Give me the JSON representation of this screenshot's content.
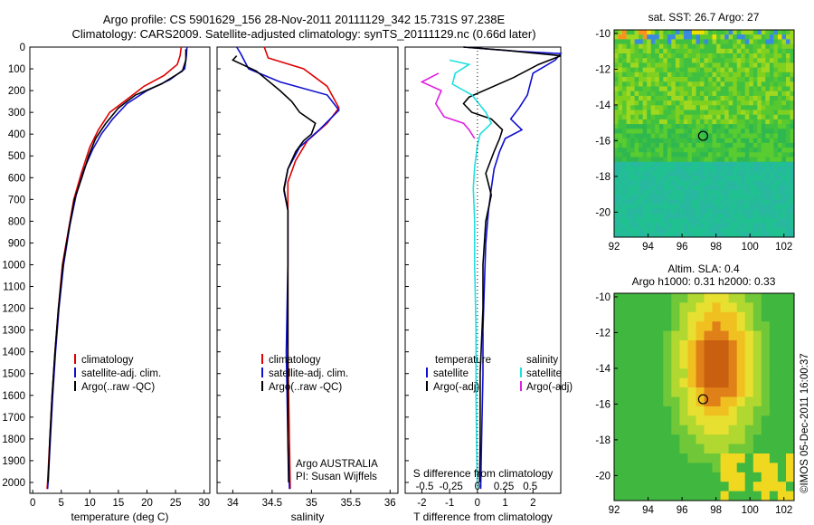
{
  "header": {
    "line1": "Argo profile: CS 5901629_156 28-Nov-2011 20111129_342 15.731S 97.238E",
    "line2": "Climatology: CARS2009. Satellite-adjusted climatology: synTS_20111129.nc (0.66d later)"
  },
  "colors": {
    "climatology": "#e00000",
    "satellite": "#1010d0",
    "argo": "#000000",
    "sal_satellite": "#20e0e0",
    "sal_argo": "#e020e0"
  },
  "chart_data": [
    {
      "type": "line",
      "name": "temperature-profile",
      "xlabel": "temperature (deg C)",
      "ylabel": "",
      "xlim": [
        -0.5,
        31
      ],
      "ylim": [
        2050,
        0
      ],
      "xticks": [
        0,
        5,
        10,
        15,
        20,
        25,
        30
      ],
      "yticks": [
        0,
        100,
        200,
        300,
        400,
        500,
        600,
        700,
        800,
        900,
        1000,
        1100,
        1200,
        1300,
        1400,
        1500,
        1600,
        1700,
        1800,
        1900,
        2000
      ],
      "legend": [
        "climatology",
        "satellite-adj. clim.",
        "Argo(..raw -QC)"
      ],
      "series": [
        {
          "name": "climatology",
          "color": "#e00000",
          "points": [
            [
              26,
              0
            ],
            [
              25.8,
              40
            ],
            [
              25.3,
              80
            ],
            [
              23,
              130
            ],
            [
              19.5,
              180
            ],
            [
              16.5,
              240
            ],
            [
              13.5,
              300
            ],
            [
              11.5,
              380
            ],
            [
              10,
              460
            ],
            [
              8.5,
              580
            ],
            [
              7.2,
              700
            ],
            [
              6.2,
              850
            ],
            [
              5.2,
              1000
            ],
            [
              4.5,
              1200
            ],
            [
              3.9,
              1400
            ],
            [
              3.4,
              1600
            ],
            [
              3,
              1800
            ],
            [
              2.6,
              2000
            ],
            [
              2.5,
              2030
            ]
          ]
        },
        {
          "name": "satellite-adj. clim.",
          "color": "#1010d0",
          "points": [
            [
              27,
              0
            ],
            [
              26.9,
              40
            ],
            [
              26.6,
              100
            ],
            [
              24,
              150
            ],
            [
              20,
              200
            ],
            [
              16.5,
              260
            ],
            [
              14,
              330
            ],
            [
              12,
              400
            ],
            [
              10.5,
              470
            ],
            [
              9,
              560
            ],
            [
              7.6,
              680
            ],
            [
              6.5,
              820
            ],
            [
              5.4,
              1000
            ],
            [
              4.6,
              1200
            ],
            [
              4,
              1400
            ],
            [
              3.5,
              1600
            ],
            [
              3.1,
              1800
            ],
            [
              2.7,
              2000
            ],
            [
              2.6,
              2030
            ]
          ]
        },
        {
          "name": "Argo(..raw -QC)",
          "color": "#000000",
          "points": [
            [
              26.8,
              10
            ],
            [
              26.8,
              60
            ],
            [
              26.2,
              110
            ],
            [
              22.5,
              170
            ],
            [
              18,
              220
            ],
            [
              15,
              280
            ],
            [
              12.8,
              350
            ],
            [
              11,
              420
            ],
            [
              9.8,
              500
            ],
            [
              8.6,
              600
            ],
            [
              7.3,
              700
            ],
            [
              6.3,
              840
            ],
            [
              5.3,
              1000
            ],
            [
              4.5,
              1200
            ],
            [
              3.9,
              1400
            ],
            [
              3.4,
              1600
            ],
            [
              3,
              1800
            ],
            [
              2.7,
              2000
            ]
          ]
        }
      ]
    },
    {
      "type": "line",
      "name": "salinity-profile",
      "xlabel": "salinity",
      "ylabel": "",
      "xlim": [
        33.8,
        36.1
      ],
      "ylim": [
        2050,
        0
      ],
      "xticks": [
        34,
        34.5,
        35,
        35.5,
        36
      ],
      "xtick_labels": [
        "34",
        "34.5",
        "35",
        "35.5",
        "36"
      ],
      "legend": [
        "climatology",
        "satellite-adj. clim.",
        "Argo(..raw -QC)"
      ],
      "annotation": [
        "Argo AUSTRALIA",
        "PI: Susan Wijffels"
      ],
      "series": [
        {
          "name": "climatology",
          "color": "#e00000",
          "points": [
            [
              34.4,
              0
            ],
            [
              34.45,
              50
            ],
            [
              34.9,
              100
            ],
            [
              35.2,
              180
            ],
            [
              35.35,
              280
            ],
            [
              35.2,
              350
            ],
            [
              34.95,
              430
            ],
            [
              34.8,
              520
            ],
            [
              34.7,
              620
            ],
            [
              34.7,
              750
            ],
            [
              34.7,
              1000
            ],
            [
              34.7,
              1400
            ],
            [
              34.72,
              1800
            ],
            [
              34.73,
              2030
            ]
          ]
        },
        {
          "name": "satellite-adj. clim.",
          "color": "#1010d0",
          "points": [
            [
              34.05,
              0
            ],
            [
              34.1,
              30
            ],
            [
              34.2,
              100
            ],
            [
              34.6,
              160
            ],
            [
              35.2,
              220
            ],
            [
              35.35,
              290
            ],
            [
              35.1,
              380
            ],
            [
              34.85,
              460
            ],
            [
              34.7,
              560
            ],
            [
              34.65,
              660
            ],
            [
              34.7,
              750
            ],
            [
              34.7,
              1000
            ],
            [
              34.68,
              1400
            ],
            [
              34.7,
              1800
            ],
            [
              34.72,
              2030
            ]
          ]
        },
        {
          "name": "Argo(..raw -QC)",
          "color": "#000000",
          "points": [
            [
              34.05,
              40
            ],
            [
              34.0,
              60
            ],
            [
              34.3,
              110
            ],
            [
              34.6,
              200
            ],
            [
              34.75,
              250
            ],
            [
              34.85,
              300
            ],
            [
              35.05,
              350
            ],
            [
              35.0,
              400
            ],
            [
              34.9,
              430
            ],
            [
              34.8,
              480
            ],
            [
              34.7,
              560
            ],
            [
              34.65,
              650
            ],
            [
              34.7,
              750
            ],
            [
              34.7,
              1000
            ],
            [
              34.7,
              1400
            ],
            [
              34.7,
              1800
            ],
            [
              34.71,
              2000
            ]
          ]
        }
      ]
    },
    {
      "type": "line",
      "name": "difference-profile",
      "xlabel": "T difference from climatology",
      "xlabel_top": "S difference from climatology",
      "xlim": [
        -2.6,
        3
      ],
      "ylim": [
        2050,
        0
      ],
      "xticks": [
        -2,
        -1,
        0,
        1,
        2
      ],
      "xtick_labels": [
        "-2",
        "-1",
        "0",
        "1",
        "2"
      ],
      "sticks": [
        -0.5,
        -0.25,
        0,
        0.25,
        0.5
      ],
      "stick_labels": [
        "-0.5",
        "-0.25",
        "0",
        "0.25",
        "0.5"
      ],
      "legend_temperature": [
        "temperature",
        "satellite",
        "Argo(-adj)"
      ],
      "legend_salinity": [
        "salinity",
        "satellite",
        "Argo(-adj)"
      ],
      "series": [
        {
          "name": "temperature satellite",
          "color": "#1010d0",
          "points": [
            [
              -0.5,
              0
            ],
            [
              1.5,
              20
            ],
            [
              3,
              30
            ],
            [
              2.8,
              60
            ],
            [
              2,
              120
            ],
            [
              1.8,
              220
            ],
            [
              1.5,
              280
            ],
            [
              1.2,
              330
            ],
            [
              1.6,
              380
            ],
            [
              1,
              420
            ],
            [
              0.8,
              480
            ],
            [
              0.6,
              560
            ],
            [
              0.5,
              650
            ],
            [
              0.4,
              750
            ],
            [
              0.3,
              900
            ],
            [
              0.25,
              1100
            ],
            [
              0.2,
              1300
            ],
            [
              0.2,
              1500
            ],
            [
              0.15,
              1800
            ],
            [
              0.12,
              2030
            ]
          ]
        },
        {
          "name": "temperature Argo(-adj)",
          "color": "#000000",
          "points": [
            [
              -0.5,
              0
            ],
            [
              1,
              15
            ],
            [
              3,
              40
            ],
            [
              2.2,
              80
            ],
            [
              1.3,
              140
            ],
            [
              -0.3,
              230
            ],
            [
              -0.5,
              260
            ],
            [
              -0.2,
              300
            ],
            [
              0.5,
              330
            ],
            [
              0.9,
              380
            ],
            [
              0.8,
              420
            ],
            [
              0.6,
              480
            ],
            [
              0.3,
              580
            ],
            [
              0.5,
              680
            ],
            [
              0.3,
              800
            ],
            [
              0.2,
              1000
            ],
            [
              0.2,
              1200
            ],
            [
              0.1,
              1500
            ],
            [
              0.1,
              1800
            ],
            [
              0.08,
              2000
            ]
          ]
        },
        {
          "name": "salinity satellite",
          "color": "#20e0e0",
          "points": [
            [
              -1,
              60
            ],
            [
              -0.3,
              80
            ],
            [
              -0.8,
              120
            ],
            [
              -0.9,
              170
            ],
            [
              -0.2,
              220
            ],
            [
              0.3,
              300
            ],
            [
              0.5,
              350
            ],
            [
              0.1,
              400
            ],
            [
              0,
              450
            ],
            [
              -0.1,
              550
            ],
            [
              -0.15,
              650
            ],
            [
              -0.1,
              800
            ],
            [
              -0.1,
              1000
            ],
            [
              -0.05,
              1300
            ],
            [
              -0.05,
              1600
            ],
            [
              -0.02,
              1900
            ],
            [
              0,
              2030
            ]
          ]
        },
        {
          "name": "salinity Argo(-adj)",
          "color": "#e020e0",
          "points": [
            [
              -1.4,
              120
            ],
            [
              -2,
              160
            ],
            [
              -1.3,
              200
            ],
            [
              -1.5,
              260
            ],
            [
              -1.2,
              320
            ],
            [
              -0.5,
              350
            ],
            [
              -0.3,
              380
            ],
            [
              -0.1,
              420
            ]
          ]
        }
      ]
    },
    {
      "type": "heatmap",
      "name": "sst-map",
      "title": "sat. SST: 26.7 Argo: 27",
      "xlim": [
        92,
        102.6
      ],
      "ylim": [
        -21.4,
        -9.8
      ],
      "xticks": [
        92,
        94,
        96,
        98,
        100,
        102
      ],
      "yticks": [
        -10,
        -12,
        -14,
        -16,
        -18,
        -20
      ],
      "ytick_labels": [
        "-10",
        "-12",
        "-14",
        "-16",
        "-18",
        "-20"
      ],
      "marker": [
        97.24,
        -15.73
      ]
    },
    {
      "type": "heatmap",
      "name": "sla-map",
      "title": "Altim. SLA: 0.4",
      "subtitle": "Argo h1000: 0.31 h2000: 0.33",
      "xlim": [
        92,
        102.6
      ],
      "ylim": [
        -21.4,
        -9.8
      ],
      "xticks": [
        92,
        94,
        96,
        98,
        100,
        102
      ],
      "yticks": [
        -10,
        -12,
        -14,
        -16,
        -18,
        -20
      ],
      "ytick_labels": [
        "-10",
        "-12",
        "-14",
        "-16",
        "-18",
        "-20"
      ],
      "marker": [
        97.24,
        -15.73
      ]
    }
  ],
  "footer": {
    "stamp": "©IMOS 05-Dec-2011 16:00:37"
  }
}
